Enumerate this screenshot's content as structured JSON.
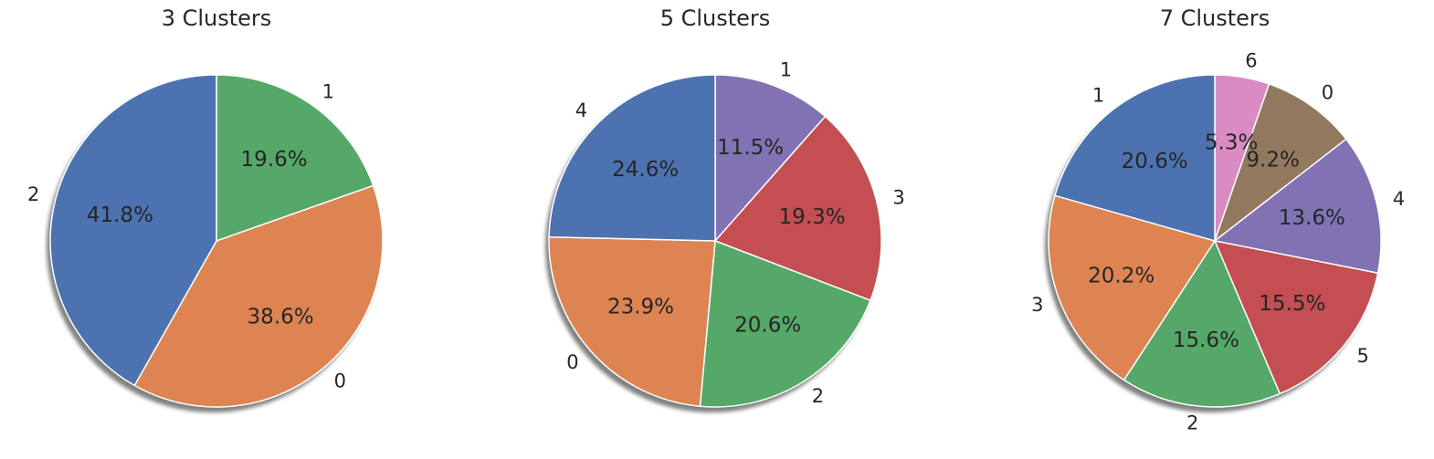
{
  "chart_data": [
    {
      "type": "pie",
      "title": "3 Clusters",
      "start_angle_deg": 90,
      "direction": "clockwise",
      "shadow": true,
      "slices": [
        {
          "label": "1",
          "value": 19.6,
          "display": "19.6%",
          "color": "#55a868"
        },
        {
          "label": "0",
          "value": 38.6,
          "display": "38.6%",
          "color": "#dd8452"
        },
        {
          "label": "2",
          "value": 41.8,
          "display": "41.8%",
          "color": "#4c72b0"
        }
      ]
    },
    {
      "type": "pie",
      "title": "5 Clusters",
      "start_angle_deg": 90,
      "direction": "clockwise",
      "shadow": true,
      "slices": [
        {
          "label": "1",
          "value": 11.5,
          "display": "11.5%",
          "color": "#8172b3"
        },
        {
          "label": "3",
          "value": 19.3,
          "display": "19.3%",
          "color": "#c44e52"
        },
        {
          "label": "2",
          "value": 20.6,
          "display": "20.6%",
          "color": "#55a868"
        },
        {
          "label": "0",
          "value": 23.9,
          "display": "23.9%",
          "color": "#dd8452"
        },
        {
          "label": "4",
          "value": 24.6,
          "display": "24.6%",
          "color": "#4c72b0"
        }
      ]
    },
    {
      "type": "pie",
      "title": "7 Clusters",
      "start_angle_deg": 90,
      "direction": "clockwise",
      "shadow": true,
      "slices": [
        {
          "label": "6",
          "value": 5.3,
          "display": "5.3%",
          "color": "#da8bc3"
        },
        {
          "label": "0",
          "value": 9.2,
          "display": "9.2%",
          "color": "#937860"
        },
        {
          "label": "4",
          "value": 13.6,
          "display": "13.6%",
          "color": "#8172b3"
        },
        {
          "label": "5",
          "value": 15.5,
          "display": "15.5%",
          "color": "#c44e52"
        },
        {
          "label": "2",
          "value": 15.6,
          "display": "15.6%",
          "color": "#55a868"
        },
        {
          "label": "3",
          "value": 20.2,
          "display": "20.2%",
          "color": "#dd8452"
        },
        {
          "label": "1",
          "value": 20.6,
          "display": "20.6%",
          "color": "#4c72b0"
        }
      ]
    }
  ]
}
